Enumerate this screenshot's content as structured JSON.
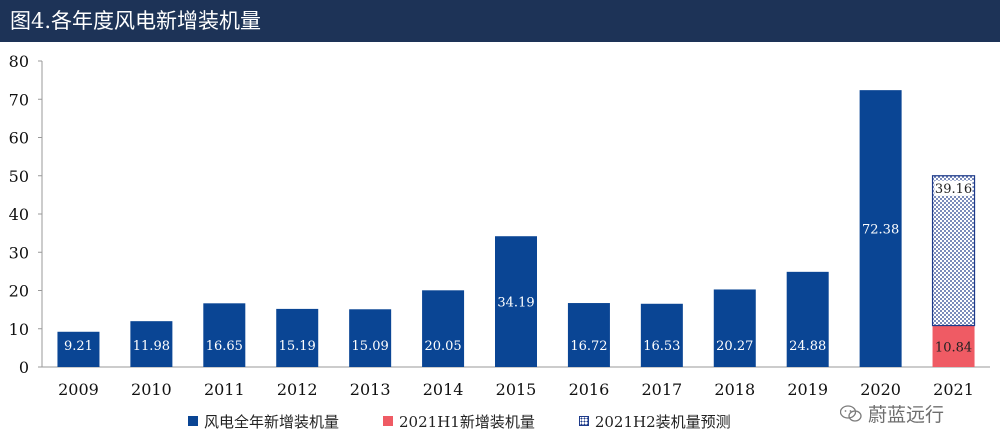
{
  "header": {
    "title": "图4.各年度风电新增装机量"
  },
  "colors": {
    "main": "#0a4594",
    "h1": "#ef5b64",
    "h2": "#1d3a8a",
    "header_bg": "#1d3357"
  },
  "chart_data": {
    "type": "bar",
    "stacked": true,
    "categories": [
      "2009",
      "2010",
      "2011",
      "2012",
      "2013",
      "2014",
      "2015",
      "2016",
      "2017",
      "2018",
      "2019",
      "2020",
      "2021"
    ],
    "ylim": [
      0,
      80
    ],
    "yticks": [
      0,
      10,
      20,
      30,
      40,
      50,
      60,
      70,
      80
    ],
    "grid": false,
    "legend_position": "bottom",
    "series": [
      {
        "name": "风电全年新增装机量",
        "pattern": "solid",
        "values": [
          9.21,
          11.98,
          16.65,
          15.19,
          15.09,
          20.05,
          34.19,
          16.72,
          16.53,
          20.27,
          24.88,
          72.38,
          null
        ],
        "labels": [
          "9.21",
          "11.98",
          "16.65",
          "15.19",
          "15.09",
          "20.05",
          "34.19",
          "16.72",
          "16.53",
          "20.27",
          "24.88",
          "72.38",
          ""
        ]
      },
      {
        "name": "2021H1新增装机量",
        "pattern": "solid",
        "values": [
          null,
          null,
          null,
          null,
          null,
          null,
          null,
          null,
          null,
          null,
          null,
          null,
          10.84
        ],
        "labels": [
          "",
          "",
          "",
          "",
          "",
          "",
          "",
          "",
          "",
          "",
          "",
          "",
          "10.84"
        ]
      },
      {
        "name": "2021H2装机量预测",
        "pattern": "dotted",
        "values": [
          null,
          null,
          null,
          null,
          null,
          null,
          null,
          null,
          null,
          null,
          null,
          null,
          39.16
        ],
        "labels": [
          "",
          "",
          "",
          "",
          "",
          "",
          "",
          "",
          "",
          "",
          "",
          "",
          "39.16"
        ]
      }
    ]
  },
  "watermark": {
    "text": "蔚蓝远行",
    "icon": "wechat-icon"
  }
}
